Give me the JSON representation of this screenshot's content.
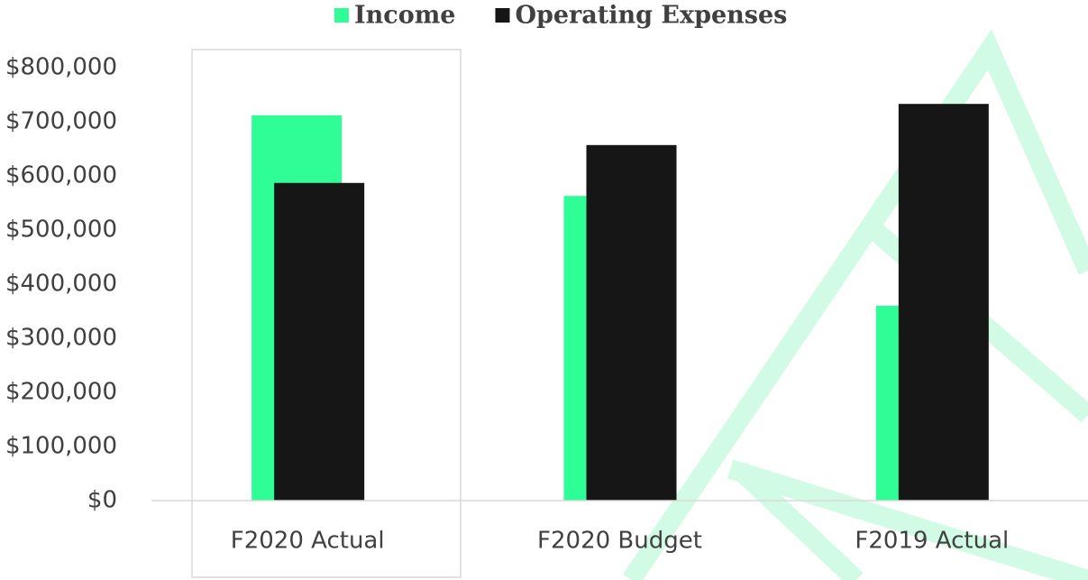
{
  "chart_data": {
    "type": "bar",
    "categories": [
      "F2020 Actual",
      "F2020 Budget",
      "F2019 Actual"
    ],
    "series": [
      {
        "name": "Income",
        "color": "#2ffd95",
        "values": [
          712000,
          563000,
          360000
        ]
      },
      {
        "name": "Operating Expenses",
        "color": "#161616",
        "values": [
          587000,
          657000,
          733000
        ]
      }
    ],
    "ylim": [
      0,
      800000
    ],
    "yticks": [
      {
        "value": 0,
        "label": "$0"
      },
      {
        "value": 100000,
        "label": "$100,000"
      },
      {
        "value": 200000,
        "label": "$200,000"
      },
      {
        "value": 300000,
        "label": "$300,000"
      },
      {
        "value": 400000,
        "label": "$400,000"
      },
      {
        "value": 500000,
        "label": "$500,000"
      },
      {
        "value": 600000,
        "label": "$600,000"
      },
      {
        "value": 700000,
        "label": "$700,000"
      },
      {
        "value": 800000,
        "label": "$800,000"
      }
    ],
    "grid": false,
    "legend": "top"
  }
}
